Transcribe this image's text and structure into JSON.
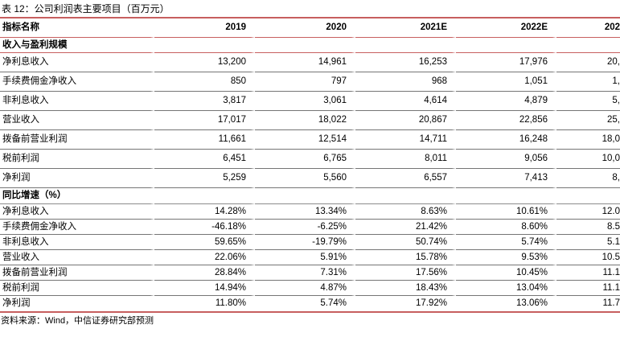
{
  "title": "表 12：公司利润表主要项目（百万元）",
  "source": "资料来源：Wind，中信证券研究部预测",
  "table": {
    "columns": [
      "指标名称",
      "2019",
      "2020",
      "2021E",
      "2022E",
      "202"
    ],
    "sections": [
      {
        "label": "收入与盈利规模",
        "rows": [
          {
            "label": "净利息收入",
            "values": [
              "13,200",
              "14,961",
              "16,253",
              "17,976",
              "20,"
            ]
          },
          {
            "label": "手续费佣金净收入",
            "values": [
              "850",
              "797",
              "968",
              "1,051",
              "1,"
            ]
          },
          {
            "label": "非利息收入",
            "values": [
              "3,817",
              "3,061",
              "4,614",
              "4,879",
              "5,"
            ]
          },
          {
            "label": "营业收入",
            "values": [
              "17,017",
              "18,022",
              "20,867",
              "22,856",
              "25,"
            ]
          },
          {
            "label": "拨备前营业利润",
            "values": [
              "11,661",
              "12,514",
              "14,711",
              "16,248",
              "18,0"
            ]
          },
          {
            "label": "税前利润",
            "values": [
              "6,451",
              "6,765",
              "8,011",
              "9,056",
              "10,0"
            ]
          },
          {
            "label": "净利润",
            "values": [
              "5,259",
              "5,560",
              "6,557",
              "7,413",
              "8,"
            ]
          }
        ]
      },
      {
        "label": "同比增速（%）",
        "rows": [
          {
            "label": "净利息收入",
            "values": [
              "14.28%",
              "13.34%",
              "8.63%",
              "10.61%",
              "12.0"
            ]
          },
          {
            "label": "手续费佣金净收入",
            "values": [
              "-46.18%",
              "-6.25%",
              "21.42%",
              "8.60%",
              "8.5"
            ]
          },
          {
            "label": "非利息收入",
            "values": [
              "59.65%",
              "-19.79%",
              "50.74%",
              "5.74%",
              "5.1"
            ]
          },
          {
            "label": "营业收入",
            "values": [
              "22.06%",
              "5.91%",
              "15.78%",
              "9.53%",
              "10.5"
            ]
          },
          {
            "label": "拨备前营业利润",
            "values": [
              "28.84%",
              "7.31%",
              "17.56%",
              "10.45%",
              "11.1"
            ]
          },
          {
            "label": "税前利润",
            "values": [
              "14.94%",
              "4.87%",
              "18.43%",
              "13.04%",
              "11.1"
            ]
          },
          {
            "label": "净利润",
            "values": [
              "11.80%",
              "5.74%",
              "17.92%",
              "13.06%",
              "11.7"
            ]
          }
        ]
      }
    ]
  },
  "colors": {
    "rule_red": "#c75f5f",
    "rule_gray": "#757575",
    "text": "#000000"
  }
}
